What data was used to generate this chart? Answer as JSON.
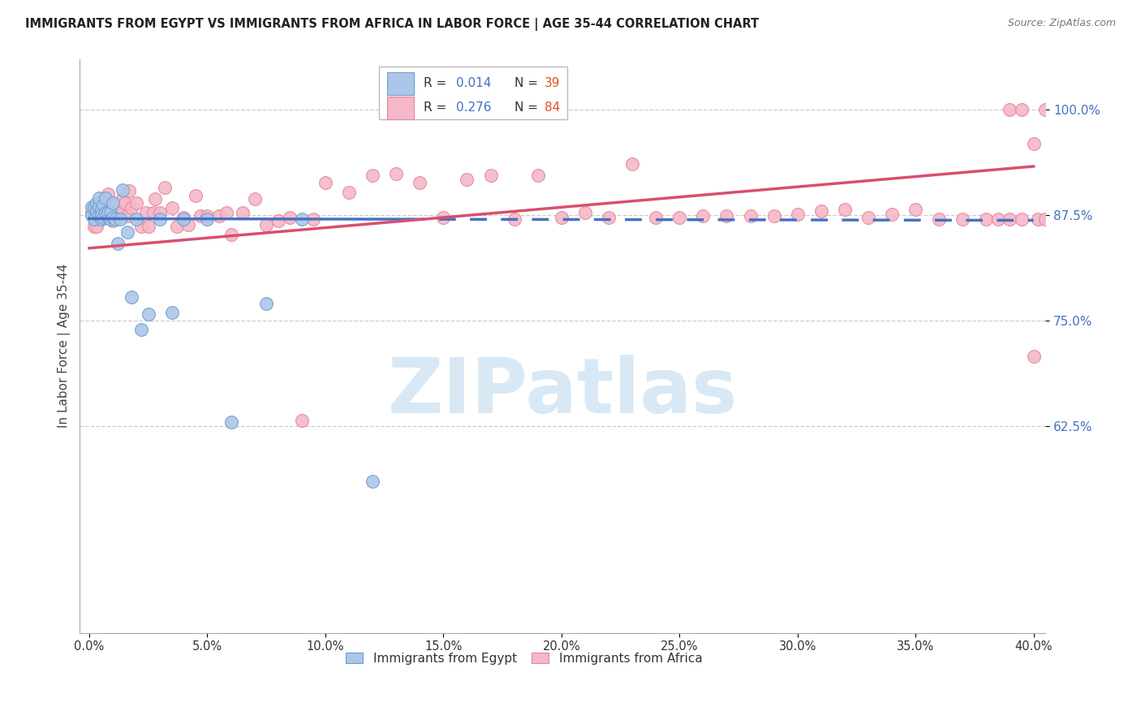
{
  "title": "IMMIGRANTS FROM EGYPT VS IMMIGRANTS FROM AFRICA IN LABOR FORCE | AGE 35-44 CORRELATION CHART",
  "source": "Source: ZipAtlas.com",
  "ylabel": "In Labor Force | Age 35-44",
  "ylim": [
    0.38,
    1.06
  ],
  "xlim": [
    -0.004,
    0.405
  ],
  "ytick_vals": [
    0.625,
    0.75,
    0.875,
    1.0
  ],
  "ytick_labels": [
    "62.5%",
    "75.0%",
    "87.5%",
    "100.0%"
  ],
  "xtick_vals": [
    0.0,
    0.05,
    0.1,
    0.15,
    0.2,
    0.25,
    0.3,
    0.35,
    0.4
  ],
  "xtick_labels": [
    "0.0%",
    "5.0%",
    "10.0%",
    "15.0%",
    "20.0%",
    "25.0%",
    "30.0%",
    "35.0%",
    "40.0%"
  ],
  "color_egypt_fill": "#adc6e8",
  "color_egypt_edge": "#6a9fd0",
  "color_africa_fill": "#f4b8c8",
  "color_africa_edge": "#e8849a",
  "color_egypt_line": "#4472c4",
  "color_africa_line": "#d94f6e",
  "color_ytick": "#4472c4",
  "color_grid": "#cccccc",
  "background_color": "#ffffff",
  "watermark_color": "#d8e8f5",
  "legend_r_egypt_val": "0.014",
  "legend_n_egypt_val": "39",
  "legend_r_africa_val": "0.276",
  "legend_n_africa_val": "84",
  "legend_val_color": "#4472c4",
  "legend_n_color": "#e05020",
  "egypt_x": [
    0.001,
    0.001,
    0.002,
    0.002,
    0.003,
    0.003,
    0.004,
    0.004,
    0.004,
    0.005,
    0.005,
    0.005,
    0.006,
    0.006,
    0.007,
    0.007,
    0.008,
    0.008,
    0.009,
    0.009,
    0.01,
    0.01,
    0.011,
    0.012,
    0.013,
    0.014,
    0.016,
    0.018,
    0.02,
    0.022,
    0.025,
    0.03,
    0.035,
    0.04,
    0.05,
    0.06,
    0.075,
    0.09,
    0.12
  ],
  "egypt_y": [
    0.875,
    0.885,
    0.87,
    0.885,
    0.88,
    0.89,
    0.875,
    0.885,
    0.895,
    0.87,
    0.882,
    0.875,
    0.888,
    0.872,
    0.878,
    0.895,
    0.872,
    0.878,
    0.878,
    0.87,
    0.89,
    0.872,
    0.87,
    0.842,
    0.87,
    0.905,
    0.855,
    0.778,
    0.87,
    0.74,
    0.758,
    0.87,
    0.76,
    0.87,
    0.87,
    0.63,
    0.77,
    0.87,
    0.56
  ],
  "africa_x": [
    0.001,
    0.002,
    0.003,
    0.004,
    0.005,
    0.006,
    0.007,
    0.008,
    0.009,
    0.01,
    0.011,
    0.012,
    0.013,
    0.014,
    0.015,
    0.016,
    0.017,
    0.018,
    0.02,
    0.022,
    0.024,
    0.025,
    0.027,
    0.028,
    0.03,
    0.032,
    0.035,
    0.037,
    0.04,
    0.042,
    0.045,
    0.047,
    0.05,
    0.055,
    0.058,
    0.06,
    0.065,
    0.07,
    0.075,
    0.08,
    0.085,
    0.09,
    0.095,
    0.1,
    0.11,
    0.12,
    0.13,
    0.14,
    0.15,
    0.16,
    0.17,
    0.18,
    0.19,
    0.2,
    0.21,
    0.22,
    0.23,
    0.24,
    0.25,
    0.26,
    0.27,
    0.28,
    0.29,
    0.3,
    0.31,
    0.32,
    0.33,
    0.34,
    0.35,
    0.36,
    0.37,
    0.38,
    0.385,
    0.39,
    0.395,
    0.4,
    0.402,
    0.405,
    0.408,
    0.41,
    0.39,
    0.395,
    0.4,
    0.405
  ],
  "africa_y": [
    0.878,
    0.862,
    0.862,
    0.878,
    0.88,
    0.884,
    0.874,
    0.9,
    0.878,
    0.868,
    0.888,
    0.878,
    0.878,
    0.894,
    0.89,
    0.874,
    0.904,
    0.884,
    0.89,
    0.862,
    0.878,
    0.862,
    0.878,
    0.894,
    0.878,
    0.908,
    0.884,
    0.862,
    0.872,
    0.864,
    0.898,
    0.874,
    0.874,
    0.874,
    0.878,
    0.852,
    0.878,
    0.894,
    0.864,
    0.868,
    0.872,
    0.632,
    0.87,
    0.914,
    0.902,
    0.922,
    0.924,
    0.914,
    0.872,
    0.918,
    0.922,
    0.87,
    0.922,
    0.872,
    0.878,
    0.872,
    0.936,
    0.872,
    0.872,
    0.874,
    0.874,
    0.874,
    0.874,
    0.876,
    0.88,
    0.882,
    0.872,
    0.876,
    0.882,
    0.87,
    0.87,
    0.87,
    0.87,
    0.87,
    0.87,
    0.708,
    0.87,
    0.87,
    0.87,
    0.87,
    1.0,
    1.0,
    0.96,
    1.0
  ]
}
